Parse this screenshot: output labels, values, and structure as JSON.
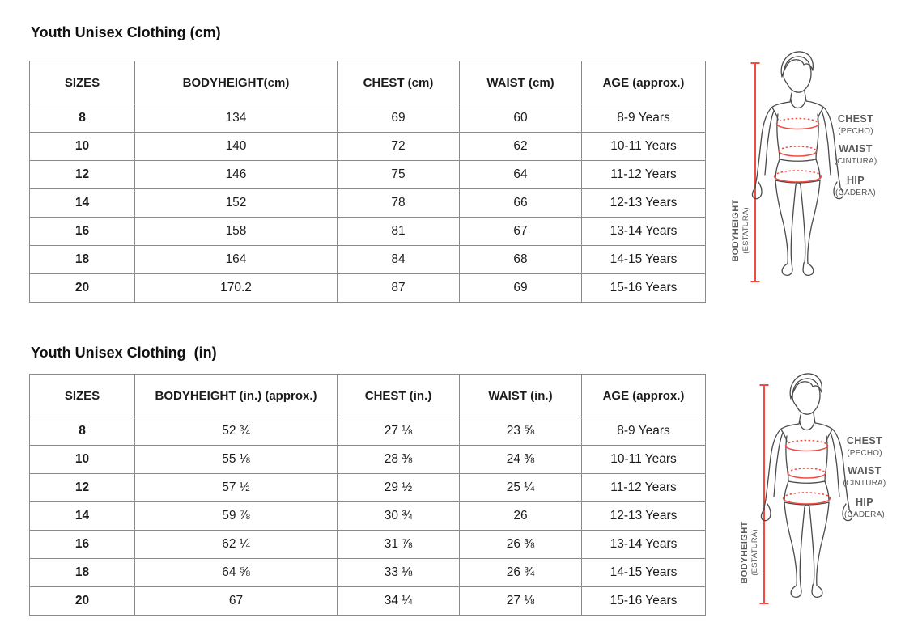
{
  "colors": {
    "accent_red": "#ee4b43",
    "outline_gray": "#4a4a4a",
    "label_gray": "#58595b",
    "table_border": "#8a8a8a"
  },
  "sections": [
    {
      "title": "Youth Unisex Clothing (cm)",
      "table": {
        "headers": [
          "SIZES",
          "BODYHEIGHT(cm)",
          "CHEST (cm)",
          "WAIST (cm)",
          "AGE (approx.)"
        ],
        "rows": [
          [
            "8",
            "134",
            "69",
            "60",
            "8-9 Years"
          ],
          [
            "10",
            "140",
            "72",
            "62",
            "10-11 Years"
          ],
          [
            "12",
            "146",
            "75",
            "64",
            "11-12 Years"
          ],
          [
            "14",
            "152",
            "78",
            "66",
            "12-13 Years"
          ],
          [
            "16",
            "158",
            "81",
            "67",
            "13-14 Years"
          ],
          [
            "18",
            "164",
            "84",
            "68",
            "14-15 Years"
          ],
          [
            "20",
            "170.2",
            "87",
            "69",
            "15-16 Years"
          ]
        ]
      }
    },
    {
      "title": "Youth Unisex Clothing  (in)",
      "table": {
        "headers": [
          "SIZES",
          "BODYHEIGHT (in.) (approx.)",
          "CHEST (in.)",
          "WAIST (in.)",
          "AGE (approx.)"
        ],
        "rows": [
          [
            "8",
            "52 ¾",
            "27 ⅛",
            "23 ⅝",
            "8-9 Years"
          ],
          [
            "10",
            "55 ⅛",
            "28 ⅜",
            "24 ⅜",
            "10-11 Years"
          ],
          [
            "12",
            "57 ½",
            "29 ½",
            "25 ¼",
            "11-12 Years"
          ],
          [
            "14",
            "59 ⅞",
            "30 ¾",
            "26",
            "12-13 Years"
          ],
          [
            "16",
            "62 ¼",
            "31 ⅞",
            "26 ⅜",
            "13-14 Years"
          ],
          [
            "18",
            "64 ⅝",
            "33 ⅛",
            "26 ¾",
            "14-15 Years"
          ],
          [
            "20",
            "67",
            "34 ¼",
            "27 ⅛",
            "15-16 Years"
          ]
        ]
      }
    }
  ],
  "figure": {
    "labels": {
      "chest": "CHEST",
      "chest_sub": "(PECHO)",
      "waist": "WAIST",
      "waist_sub": "(CINTURA)",
      "hip": "HIP",
      "hip_sub": "(CADERA)",
      "bodyheight": "BODYHEIGHT",
      "bodyheight_sub": "(ESTATURA)"
    }
  }
}
